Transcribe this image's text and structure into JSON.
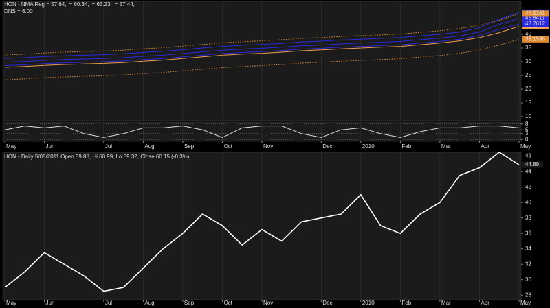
{
  "chart_data": [
    {
      "type": "line",
      "ylim": [
        8.5,
        52
      ],
      "yticks": [
        10,
        15,
        20,
        25,
        30,
        35,
        40,
        45
      ],
      "series": [
        {
          "name": "HON - NMA Reg = 57.64,",
          "color": "#f0a050",
          "dash": false,
          "values": [
            28,
            28.3,
            28.7,
            29,
            29.2,
            29.4,
            29.7,
            30.2,
            30.6,
            31.2,
            31.8,
            32.4,
            32.8,
            33.1,
            33.5,
            34,
            34.3,
            34.7,
            35,
            35.3,
            35.6,
            36.2,
            36.8,
            37.6,
            38.8,
            40.6,
            42.8889
          ]
        },
        {
          "name": "= 60.34,",
          "color": "#2a2ae0",
          "dash": false,
          "values": [
            31.2,
            31.5,
            31.9,
            32.2,
            32.4,
            32.6,
            32.9,
            33.4,
            33.8,
            34.4,
            35,
            35.6,
            36,
            36.3,
            36.7,
            37.2,
            37.5,
            37.9,
            38.2,
            38.5,
            38.8,
            39.4,
            40,
            40.8,
            42.4,
            45.5,
            47.9211
          ]
        },
        {
          "name": "= 63.23,",
          "color": "#2a2ae0",
          "dash": false,
          "values": [
            29.8,
            30.1,
            30.5,
            30.8,
            31,
            31.2,
            31.5,
            32,
            32.4,
            33,
            33.6,
            34.2,
            34.6,
            34.9,
            35.3,
            35.8,
            36.1,
            36.5,
            36.8,
            37.1,
            37.4,
            38,
            38.6,
            39.4,
            40.8,
            43.6,
            45.8411
          ]
        },
        {
          "name": "= 57.44,",
          "color": "#2a2ae0",
          "dash": false,
          "values": [
            28.6,
            28.9,
            29.3,
            29.6,
            29.8,
            30,
            30.3,
            30.8,
            31.2,
            31.8,
            32.4,
            33,
            33.4,
            33.7,
            34.1,
            34.6,
            34.9,
            35.3,
            35.6,
            35.9,
            36.2,
            36.8,
            37.4,
            38.2,
            39.6,
            41.8,
            43.7612
          ]
        },
        {
          "color": "#e08a30",
          "dash": true,
          "values": [
            32.5,
            32.8,
            33.2,
            33.5,
            33.7,
            33.9,
            34.2,
            34.7,
            35.1,
            35.7,
            36.3,
            36.9,
            37.3,
            37.6,
            38,
            38.5,
            38.8,
            39.2,
            39.5,
            39.8,
            40.1,
            40.7,
            41.3,
            42.1,
            43.3,
            45.1,
            47.5181
          ]
        },
        {
          "color": "#e08a30",
          "dash": true,
          "values": [
            23.5,
            23.8,
            24.2,
            24.5,
            24.7,
            24.9,
            25.2,
            25.7,
            26.1,
            26.7,
            27.3,
            27.9,
            28.3,
            28.6,
            29,
            29.5,
            29.8,
            30.2,
            30.5,
            30.8,
            31.1,
            31.7,
            32.3,
            33.1,
            34.3,
            36.1,
            38.1596
          ]
        }
      ]
    },
    {
      "type": "line",
      "title": "DNS = 6.00",
      "categories": [
        "May",
        null,
        "Jun",
        null,
        null,
        "Jul",
        null,
        "Aug",
        null,
        "Sep",
        null,
        "Oct",
        null,
        "Nov",
        null,
        null,
        "Dec",
        null,
        "2010",
        null,
        "Feb",
        null,
        "Mar",
        null,
        "Apr",
        null,
        "May"
      ],
      "ylim": [
        -1,
        9
      ],
      "yticks": [
        0,
        3,
        5,
        8
      ],
      "color": "#dddddd",
      "values": [
        5,
        7,
        6,
        7,
        3,
        1,
        3,
        6,
        6,
        7,
        5,
        1,
        6,
        7,
        7,
        3,
        1,
        5,
        6,
        3,
        1,
        4,
        6,
        6,
        7,
        7,
        6
      ]
    },
    {
      "type": "line",
      "title": "HON - Daily 5/05/2011 Open 59.88, Hi 60.99, Lo 59.32, Close 60.15 (-0.3%)",
      "categories": [
        "May",
        null,
        "Jun",
        null,
        null,
        "Jul",
        null,
        "Aug",
        null,
        "Sep",
        null,
        "Oct",
        null,
        "Nov",
        null,
        null,
        "Dec",
        null,
        "2010",
        null,
        "Feb",
        null,
        "Mar",
        null,
        "Apr",
        null,
        "May"
      ],
      "ylim": [
        27.4,
        46.5
      ],
      "yticks": [
        28,
        30,
        32,
        34,
        36,
        38,
        40,
        42,
        44,
        46
      ],
      "color": "#ffffff",
      "values": [
        29,
        31,
        33.5,
        32,
        30.5,
        28.5,
        29,
        31.5,
        34,
        36,
        38.5,
        37,
        34.5,
        36.5,
        35,
        37.5,
        38,
        38.5,
        41,
        37,
        36,
        38.5,
        40,
        43.5,
        44.5,
        46.5,
        44.89
      ]
    }
  ]
}
